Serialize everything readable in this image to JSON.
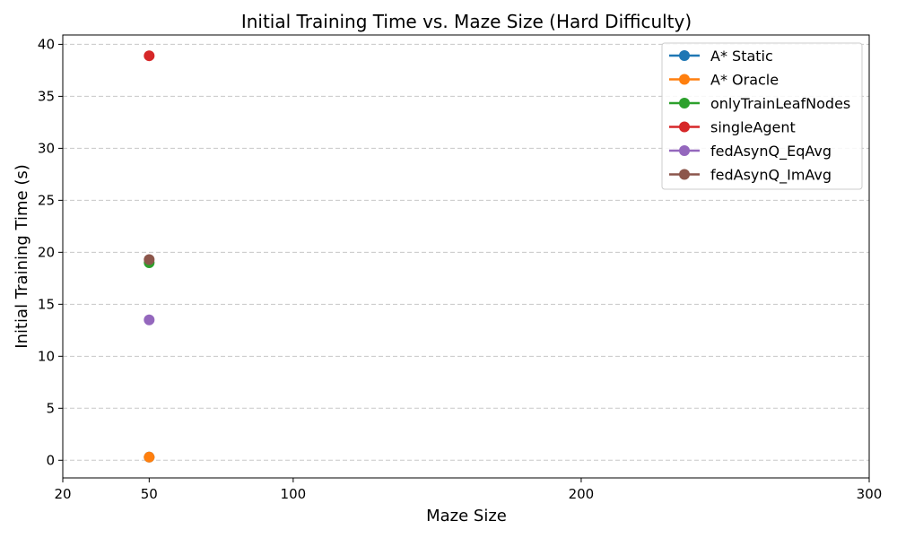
{
  "chart_data": {
    "type": "scatter",
    "title": "Initial Training Time vs. Maze Size (Hard Difficulty)",
    "xlabel": "Maze Size",
    "ylabel": "Initial Training Time (s)",
    "xlim": [
      20,
      300
    ],
    "ylim": [
      -1.7,
      40.9
    ],
    "xticks": [
      20,
      50,
      100,
      200,
      300
    ],
    "yticks": [
      0,
      5,
      10,
      15,
      20,
      25,
      30,
      35,
      40
    ],
    "grid": "y-dashed",
    "legend_position": "top-right",
    "series": [
      {
        "name": "A* Static",
        "color": "#1f77b4",
        "x": [
          50
        ],
        "y": [
          0.3
        ]
      },
      {
        "name": "A* Oracle",
        "color": "#ff7f0e",
        "x": [
          50
        ],
        "y": [
          0.3
        ]
      },
      {
        "name": "onlyTrainLeafNodes",
        "color": "#2ca02c",
        "x": [
          50
        ],
        "y": [
          19.0
        ]
      },
      {
        "name": "singleAgent",
        "color": "#d62728",
        "x": [
          50
        ],
        "y": [
          38.9
        ]
      },
      {
        "name": "fedAsynQ_EqAvg",
        "color": "#9467bd",
        "x": [
          50
        ],
        "y": [
          13.5
        ]
      },
      {
        "name": "fedAsynQ_ImAvg",
        "color": "#8c564b",
        "x": [
          50
        ],
        "y": [
          19.3
        ]
      }
    ]
  }
}
